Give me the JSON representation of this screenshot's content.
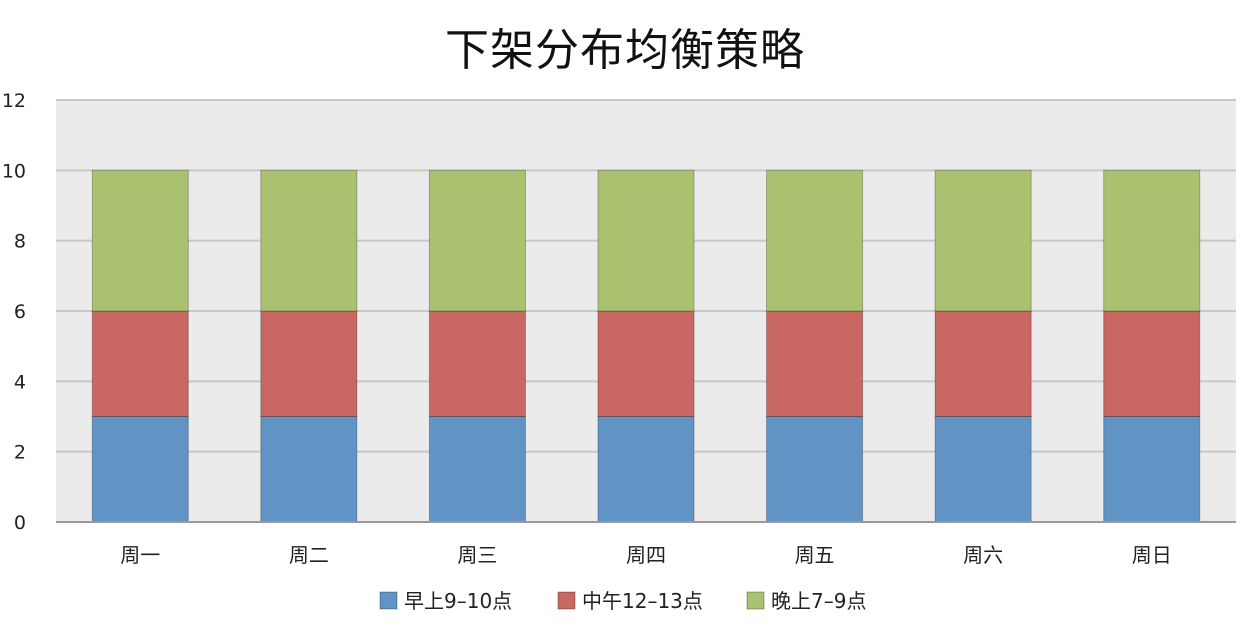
{
  "chart_data": {
    "type": "bar",
    "stacked": true,
    "title": "下架分布均衡策略",
    "xlabel": "",
    "ylabel": "",
    "ylim": [
      0,
      12
    ],
    "yticks": [
      0,
      2,
      4,
      6,
      8,
      10,
      12
    ],
    "grid": true,
    "legend_position": "bottom",
    "categories": [
      "周一",
      "周二",
      "周三",
      "周四",
      "周五",
      "周六",
      "周日"
    ],
    "series": [
      {
        "name": "早上9–10点",
        "values": [
          3,
          3,
          3,
          3,
          3,
          3,
          3
        ],
        "color": "#6194c5"
      },
      {
        "name": "中午12–13点",
        "values": [
          3,
          3,
          3,
          3,
          3,
          3,
          3
        ],
        "color": "#c96762"
      },
      {
        "name": "晚上7–9点",
        "values": [
          4,
          4,
          4,
          4,
          4,
          4,
          4
        ],
        "color": "#aac26f"
      }
    ],
    "plot_background": "#ebebeb",
    "gridline_color": "#c8c8c8"
  }
}
